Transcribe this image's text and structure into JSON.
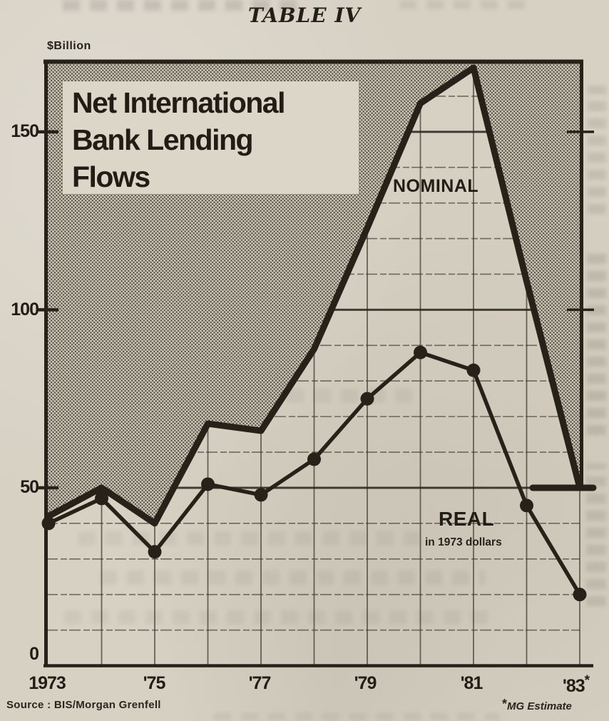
{
  "page": {
    "table_label": "TABLE IV",
    "unit_label": "$Billion",
    "estimate_star": "*",
    "source": "Source : BIS/Morgan Grenfell",
    "footnote_star": "*",
    "footnote_text": "MG Estimate"
  },
  "colors": {
    "ink": "#262219",
    "paper": "#d7d1c4",
    "halftone_base": "#cbc5b7",
    "halftone_dot": "#443e33"
  },
  "chart_data": {
    "type": "line",
    "title": "Net International Bank Lending Flows",
    "title_lines": [
      "Net International",
      "Bank Lending",
      "Flows"
    ],
    "ylabel": "$Billion",
    "xlabel": "",
    "x": [
      1973,
      1974,
      1975,
      1976,
      1977,
      1978,
      1979,
      1980,
      1981,
      1982,
      1983
    ],
    "series": [
      {
        "name": "NOMINAL",
        "values": [
          42,
          50,
          40,
          68,
          66,
          89,
          123,
          158,
          168,
          108,
          50
        ]
      },
      {
        "name": "REAL",
        "note": "in 1973 dollars",
        "values": [
          40,
          47,
          32,
          51,
          48,
          58,
          75,
          88,
          83,
          45,
          20
        ]
      }
    ],
    "ylim": [
      0,
      170
    ],
    "y_major_ticks": [
      50,
      100,
      150
    ],
    "y_tick_labels": [
      "150",
      "100",
      "50",
      "0"
    ],
    "y_minor_step": 10,
    "x_tick_labels": [
      "1973",
      "'75",
      "'77",
      "'79",
      "'81",
      "'83"
    ],
    "x_labeled_years": [
      1973,
      1975,
      1977,
      1979,
      1981,
      1983
    ],
    "estimate_year": 1983,
    "grid": "on",
    "legend_position": "inline",
    "legend": {
      "nominal_label": "NOMINAL",
      "real_label": "REAL",
      "real_sublabel": "in 1973 dollars"
    }
  }
}
